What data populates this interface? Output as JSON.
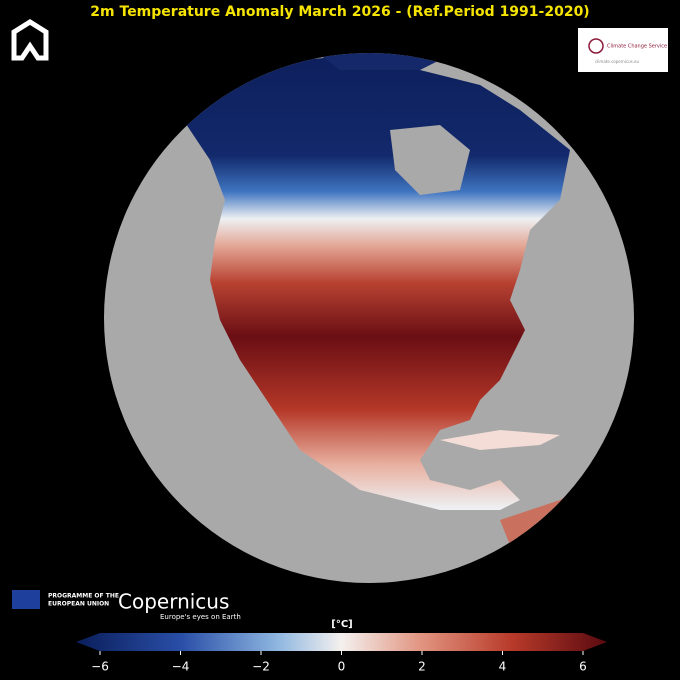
{
  "title": "2m Temperature Anomaly March 2026 - (Ref.Period 1991-2020)",
  "eu_logo": {
    "line1": "PROGRAMME OF THE",
    "line2": "EUROPEAN UNION"
  },
  "copernicus_logo": {
    "name": "Copernicus",
    "tagline": "Europe's eyes on Earth"
  },
  "c3s_logo": {
    "name": "Climate Change Service",
    "url": "climate.copernicus.eu"
  },
  "colorbar": {
    "label": "[°C]",
    "lim": [
      -6,
      6
    ],
    "ticks": [
      {
        "value": -6,
        "label": "−6"
      },
      {
        "value": -4,
        "label": "−4"
      },
      {
        "value": -2,
        "label": "−2"
      },
      0,
      2,
      4,
      6
    ]
  }
}
